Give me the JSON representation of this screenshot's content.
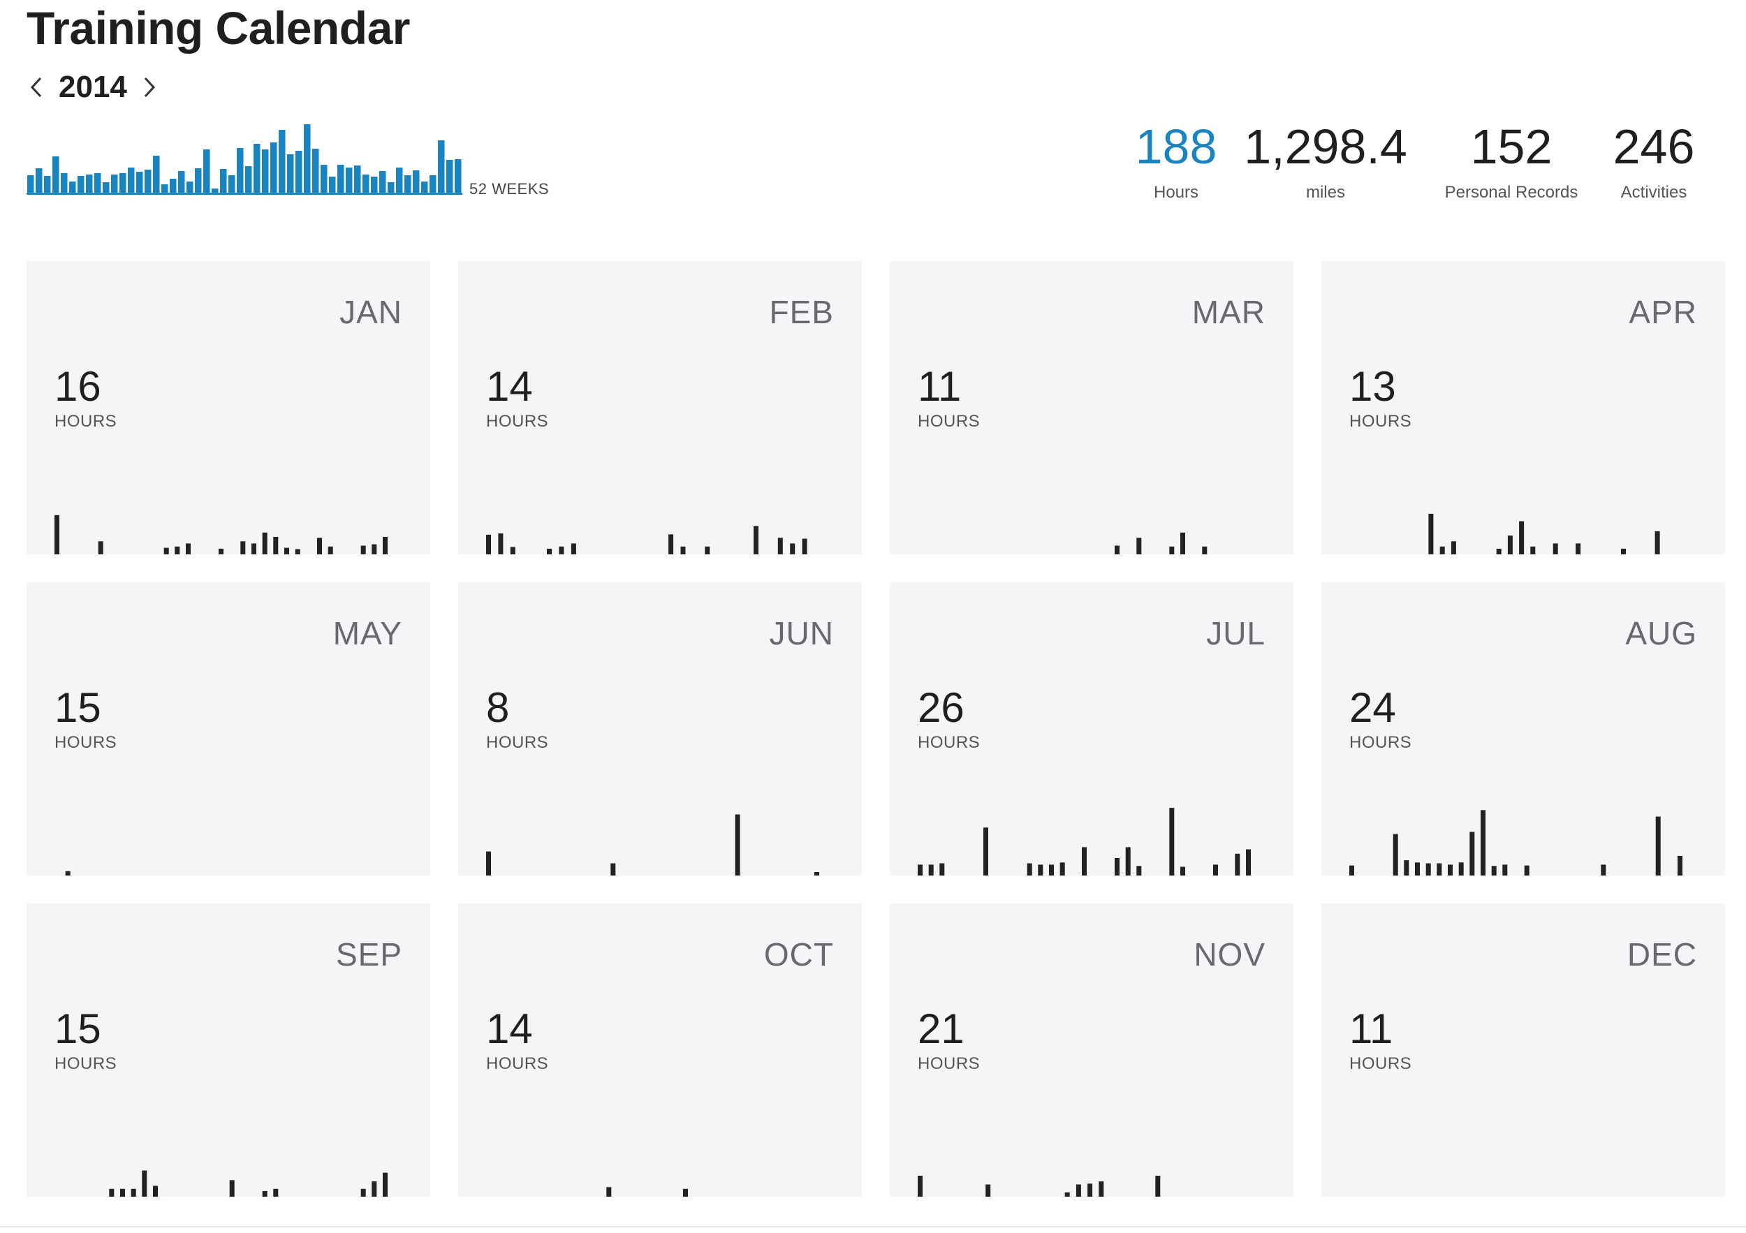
{
  "page": {
    "title": "Training Calendar",
    "year": "2014",
    "weeks_label": "52 WEEKS"
  },
  "colors": {
    "accent": "#1a84c2",
    "weekly_bar": "#1a84c2",
    "daily_bar": "#222222",
    "card_bg": "#f5f5f7"
  },
  "icons": {
    "prev": "chevron-left-icon",
    "next": "chevron-right-icon"
  },
  "stats": [
    {
      "value": "188",
      "label": "Hours"
    },
    {
      "value": "1,298.4",
      "label": "miles"
    },
    {
      "value": "152",
      "label": "Personal Records"
    },
    {
      "value": "246",
      "label": "Activities"
    }
  ],
  "chart_data": [
    {
      "type": "bar",
      "xlabel": "52 WEEKS",
      "values": [
        2.5,
        3.5,
        2.4,
        5.2,
        2.8,
        1.6,
        2.4,
        2.6,
        2.8,
        1.5,
        2.6,
        2.8,
        3.6,
        3.0,
        3.3,
        5.3,
        1.2,
        2.0,
        3.1,
        1.6,
        3.5,
        6.2,
        0.6,
        3.4,
        2.5,
        6.4,
        3.8,
        7.0,
        6.2,
        7.2,
        9.0,
        5.5,
        6.0,
        9.8,
        6.3,
        4.0,
        2.3,
        4.0,
        3.6,
        3.9,
        2.6,
        2.3,
        3.1,
        1.5,
        3.6,
        2.5,
        3.2,
        1.6,
        2.5,
        7.5,
        4.7,
        4.8
      ],
      "ylim": [
        0,
        10
      ]
    },
    {
      "type": "bar",
      "month": "JAN",
      "values": [
        9,
        0,
        0,
        0,
        3,
        0,
        0,
        0,
        0,
        0,
        1.5,
        1.8,
        2.5,
        0,
        0,
        1.3,
        0,
        3,
        2.5,
        5,
        4,
        1.5,
        1.2,
        0,
        3.8,
        1.8,
        0,
        0,
        2,
        2.3,
        4
      ]
    },
    {
      "type": "bar",
      "month": "FEB",
      "values": [
        4.5,
        4.8,
        1.7,
        0,
        0,
        1.3,
        1.8,
        2.5,
        0,
        0,
        0,
        0,
        0,
        0,
        0,
        4.6,
        1.8,
        0,
        1.8,
        0,
        0,
        0,
        6.5,
        0,
        3.8,
        2.5,
        3.6,
        0
      ]
    },
    {
      "type": "bar",
      "month": "MAR",
      "values": [
        0,
        0,
        0,
        0,
        0,
        0,
        0,
        0,
        0,
        0,
        0,
        0,
        0,
        0,
        0,
        0,
        0,
        0,
        2,
        0,
        3.8,
        0,
        0,
        1.8,
        5,
        0,
        1.8,
        0,
        0,
        0,
        0
      ]
    },
    {
      "type": "bar",
      "month": "APR",
      "values": [
        0,
        0,
        0,
        0,
        0,
        0,
        0,
        9.3,
        1.8,
        3,
        0,
        0,
        0,
        1.3,
        4.3,
        7.6,
        1.8,
        0,
        2.5,
        0,
        2.5,
        0,
        0,
        0,
        1.3,
        0,
        0,
        5.3,
        0,
        0
      ]
    },
    {
      "type": "bar",
      "month": "MAY",
      "values": [
        0,
        1,
        0,
        0,
        0,
        0,
        0,
        0,
        0,
        0,
        0,
        0,
        0,
        0,
        0,
        0,
        0,
        0,
        0,
        0,
        0,
        0,
        0,
        0,
        0,
        0,
        0,
        0,
        0,
        0,
        0
      ]
    },
    {
      "type": "bar",
      "month": "JUN",
      "values": [
        5.5,
        0,
        0,
        0,
        0,
        0,
        0,
        0,
        0,
        0,
        0,
        2.8,
        0,
        0,
        0,
        0,
        0,
        0,
        0,
        0,
        0,
        0,
        14,
        0,
        0,
        0,
        0,
        0,
        0,
        0.8
      ]
    },
    {
      "type": "bar",
      "month": "JUL",
      "values": [
        2.5,
        2.5,
        2.8,
        0,
        0,
        0,
        11,
        0,
        0,
        0,
        2.8,
        2.5,
        2.5,
        3,
        0,
        6.5,
        0,
        0,
        4,
        6.5,
        2.2,
        0,
        0,
        15.5,
        2,
        0,
        0,
        2.5,
        0,
        5,
        6
      ]
    },
    {
      "type": "bar",
      "month": "AUG",
      "values": [
        2.3,
        0,
        0,
        0,
        9.5,
        3.5,
        3,
        2.8,
        2.8,
        2.5,
        3,
        10,
        15,
        2.2,
        2.5,
        0,
        2.3,
        0,
        0,
        0,
        0,
        0,
        0,
        2.5,
        0,
        0,
        0,
        0,
        13.5,
        0,
        4.5
      ]
    },
    {
      "type": "bar",
      "month": "SEP",
      "values": [
        0,
        0,
        0,
        0,
        0,
        1.8,
        1.8,
        1.8,
        6,
        2.5,
        0,
        0,
        0,
        0,
        0,
        0,
        3.8,
        0,
        0,
        1.3,
        1.8,
        0,
        0,
        0,
        0,
        0,
        0,
        0,
        1.8,
        3.5,
        5.5
      ]
    },
    {
      "type": "bar",
      "month": "OCT",
      "values": [
        0,
        0,
        0,
        0,
        0,
        0,
        0,
        0,
        0,
        0,
        0,
        2.2,
        0,
        0,
        0,
        0,
        0,
        0,
        1.8,
        0,
        0,
        0,
        0,
        0,
        0,
        0,
        0,
        0,
        0,
        0,
        0
      ]
    },
    {
      "type": "bar",
      "month": "NOV",
      "values": [
        4.8,
        0,
        0,
        0,
        0,
        0,
        2.8,
        0,
        0,
        0,
        0,
        0,
        0,
        1,
        2.8,
        3,
        3.5,
        0,
        0,
        0,
        0,
        4.8,
        0,
        0,
        0,
        0,
        0,
        0,
        0,
        0
      ]
    },
    {
      "type": "bar",
      "month": "DEC",
      "values": [
        0,
        0,
        0,
        0,
        0,
        0,
        0,
        0,
        0,
        0,
        0,
        0,
        0,
        0,
        0,
        0,
        0,
        0,
        0,
        0,
        0,
        0,
        0,
        0,
        0,
        0,
        0,
        0,
        0,
        0,
        0
      ]
    }
  ],
  "months": [
    {
      "name": "JAN",
      "hours": "16",
      "unit": "HOURS"
    },
    {
      "name": "FEB",
      "hours": "14",
      "unit": "HOURS"
    },
    {
      "name": "MAR",
      "hours": "11",
      "unit": "HOURS"
    },
    {
      "name": "APR",
      "hours": "13",
      "unit": "HOURS"
    },
    {
      "name": "MAY",
      "hours": "15",
      "unit": "HOURS"
    },
    {
      "name": "JUN",
      "hours": "8",
      "unit": "HOURS"
    },
    {
      "name": "JUL",
      "hours": "26",
      "unit": "HOURS"
    },
    {
      "name": "AUG",
      "hours": "24",
      "unit": "HOURS"
    },
    {
      "name": "SEP",
      "hours": "15",
      "unit": "HOURS"
    },
    {
      "name": "OCT",
      "hours": "14",
      "unit": "HOURS"
    },
    {
      "name": "NOV",
      "hours": "21",
      "unit": "HOURS"
    },
    {
      "name": "DEC",
      "hours": "11",
      "unit": "HOURS"
    }
  ]
}
